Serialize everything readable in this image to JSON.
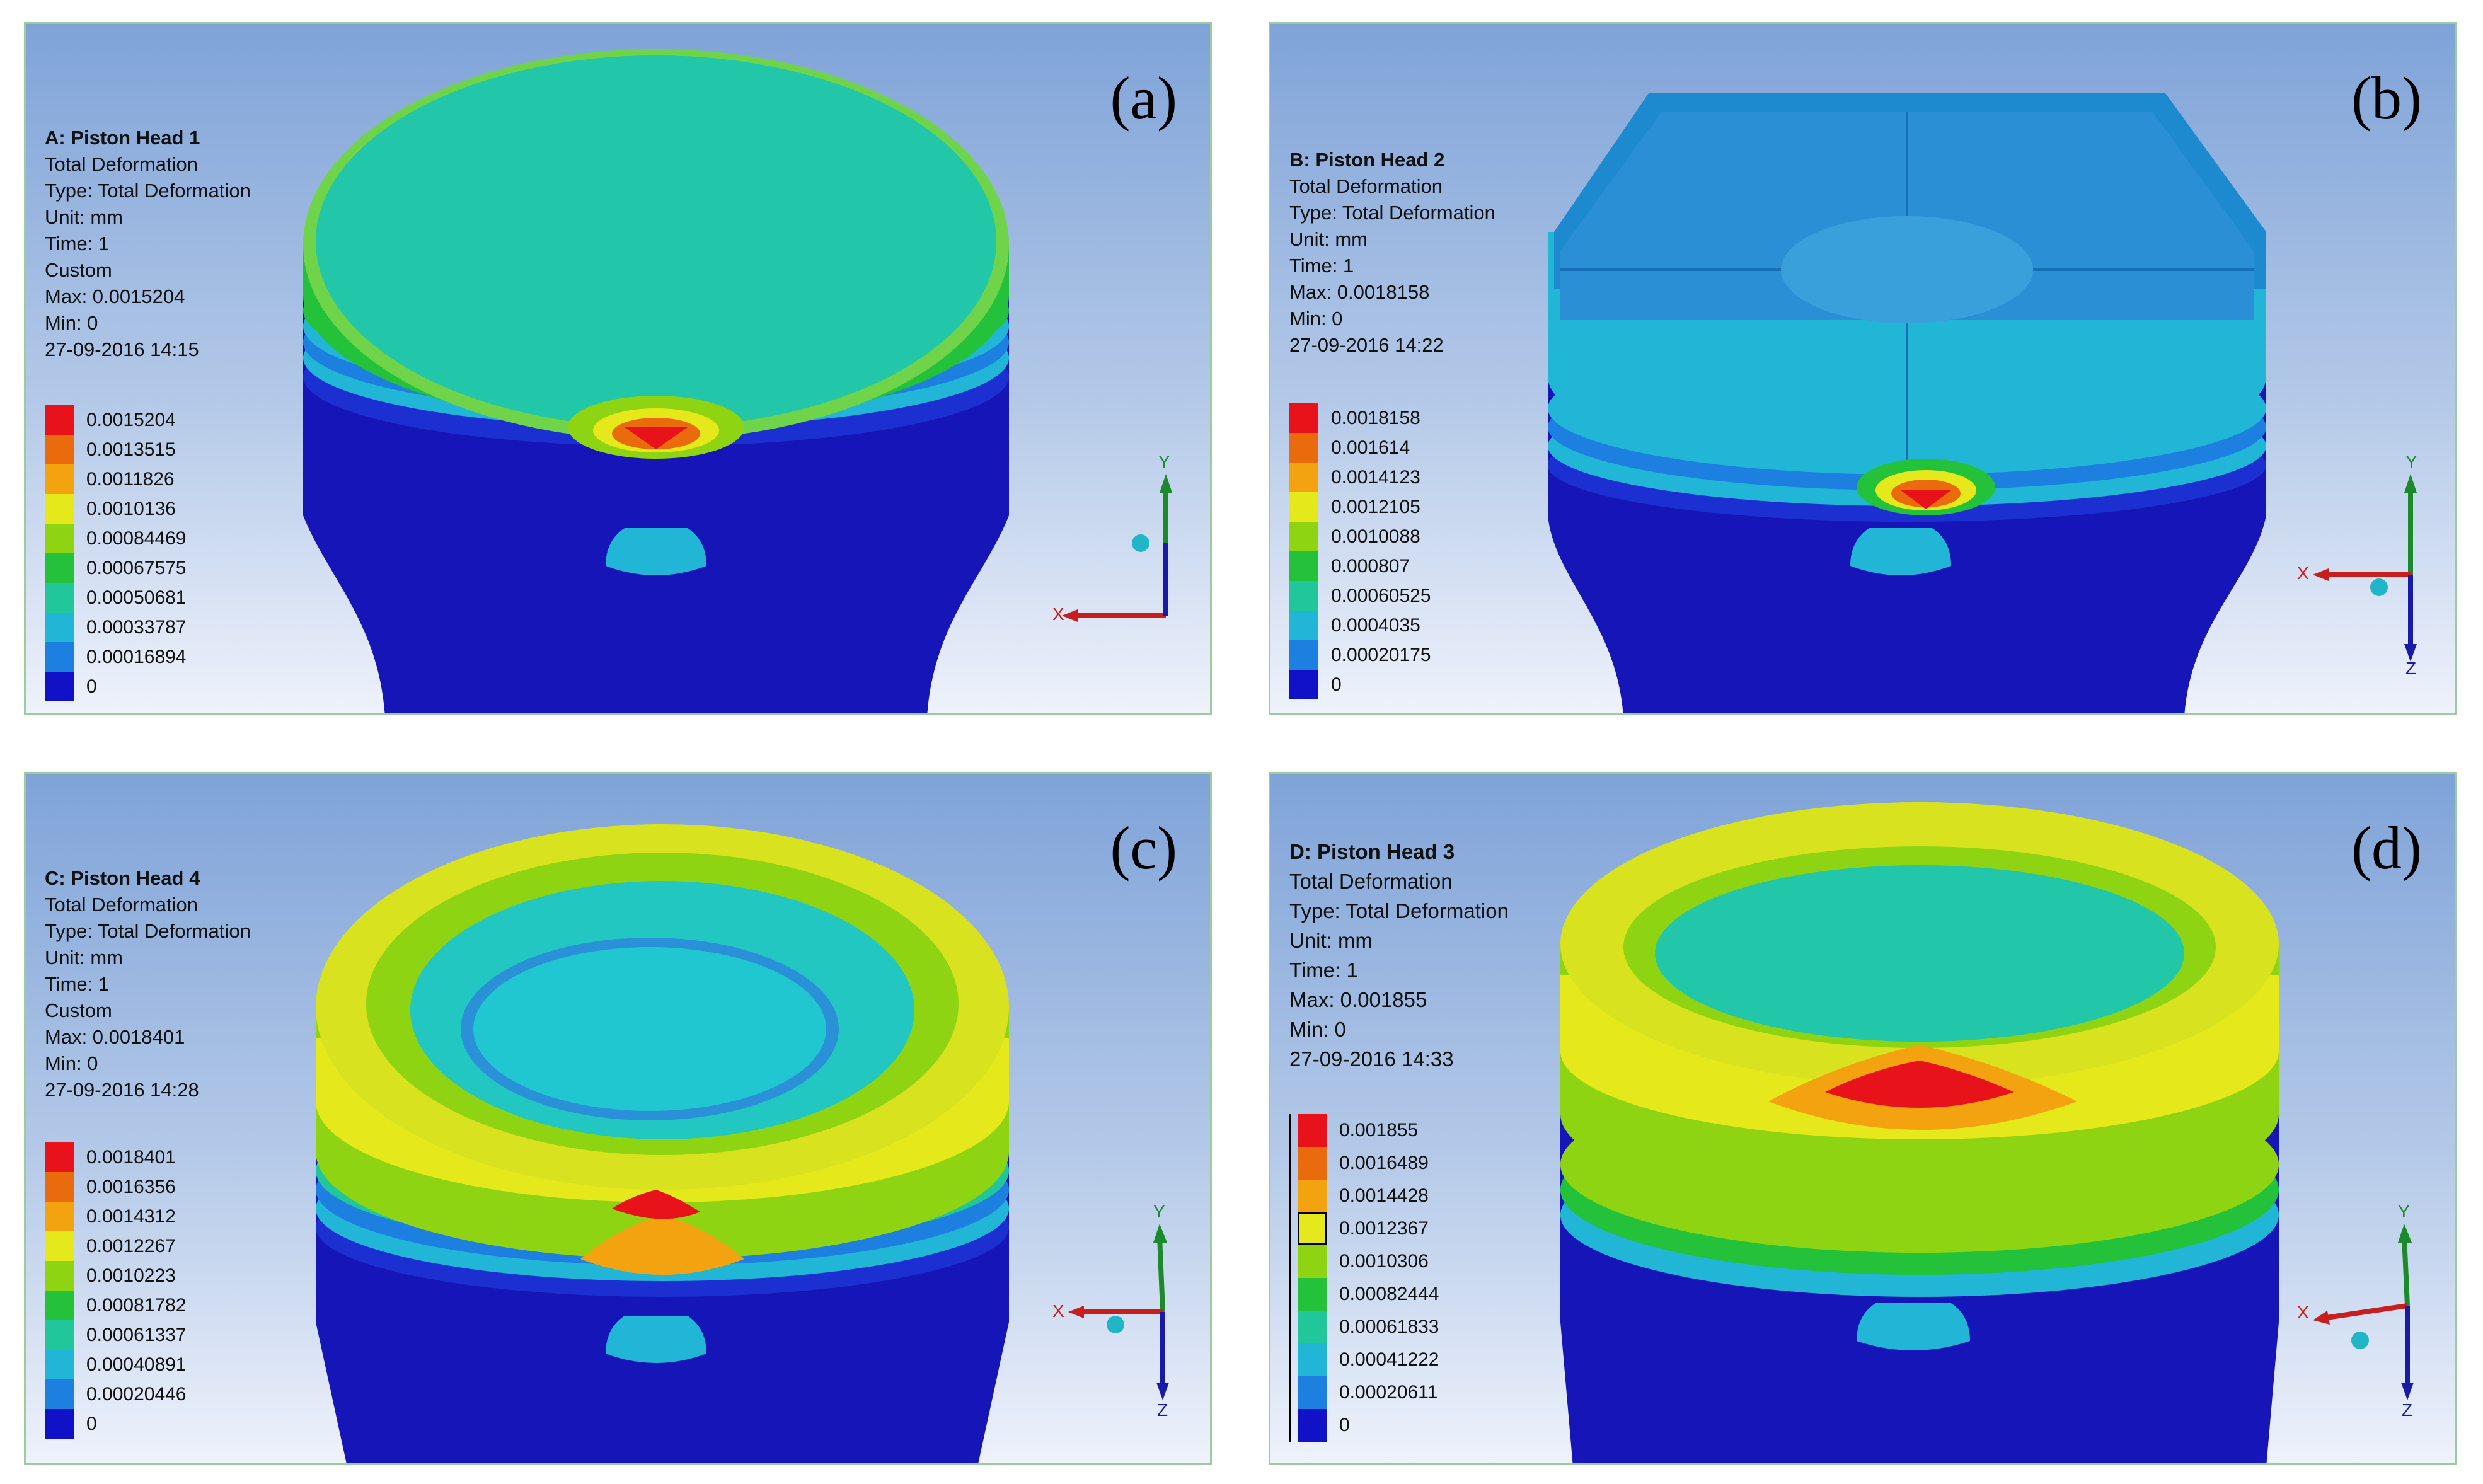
{
  "panels": [
    {
      "label": "(a)",
      "title": "A: Piston Head 1",
      "lines": [
        "Total Deformation",
        "Type: Total Deformation",
        "Unit: mm",
        "Time: 1",
        "Custom",
        "Max: 0.0015204",
        "Min: 0",
        "27-09-2016 14:15"
      ],
      "legend": [
        "0.0015204",
        "0.0013515",
        "0.0011826",
        "0.0010136",
        "0.00084469",
        "0.00067575",
        "0.00050681",
        "0.00033787",
        "0.00016894",
        "0"
      ],
      "axes": [
        "Y",
        "X"
      ]
    },
    {
      "label": "(b)",
      "title": "B: Piston Head 2",
      "lines": [
        "Total Deformation",
        "Type: Total Deformation",
        "Unit: mm",
        "Time: 1",
        "Max: 0.0018158",
        "Min: 0",
        "27-09-2016 14:22"
      ],
      "legend": [
        "0.0018158",
        "0.001614",
        "0.0014123",
        "0.0012105",
        "0.0010088",
        "0.000807",
        "0.00060525",
        "0.0004035",
        "0.00020175",
        "0"
      ],
      "axes": [
        "Y",
        "X",
        "Z"
      ]
    },
    {
      "label": "(c)",
      "title": "C: Piston Head 4",
      "lines": [
        "Total Deformation",
        "Type: Total Deformation",
        "Unit: mm",
        "Time: 1",
        "Custom",
        "Max: 0.0018401",
        "Min: 0",
        "27-09-2016 14:28"
      ],
      "legend": [
        "0.0018401",
        "0.0016356",
        "0.0014312",
        "0.0012267",
        "0.0010223",
        "0.00081782",
        "0.00061337",
        "0.00040891",
        "0.00020446",
        "0"
      ],
      "axes": [
        "Y",
        "X",
        "Z"
      ]
    },
    {
      "label": "(d)",
      "title": "D: Piston Head 3",
      "lines": [
        "Total Deformation",
        "Type: Total Deformation",
        "Unit: mm",
        "Time: 1",
        "Max: 0.001855",
        "Min: 0",
        "27-09-2016 14:33"
      ],
      "legend": [
        "0.001855",
        "0.0016489",
        "0.0014428",
        "0.0012367",
        "0.0010306",
        "0.00082444",
        "0.00061833",
        "0.00041222",
        "0.00020611",
        "0"
      ],
      "axes": [
        "Y",
        "X",
        "Z"
      ]
    }
  ],
  "colors": {
    "scale": [
      "#e8121b",
      "#ea6a0e",
      "#f2a30f",
      "#e5e81b",
      "#8fd412",
      "#23c23a",
      "#21c79a",
      "#21b5d6",
      "#1d7fe0",
      "#1111c8"
    ],
    "piston_body": "#1616b8",
    "selection_border": "#000000"
  }
}
